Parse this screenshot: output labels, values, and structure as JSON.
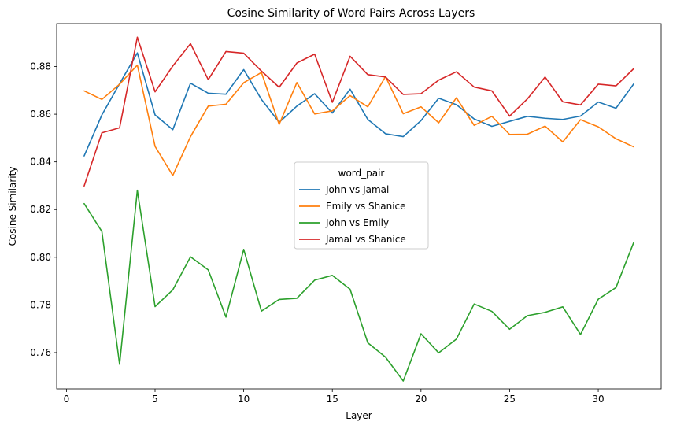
{
  "chart_data": {
    "type": "line",
    "title": "Cosine Similarity of Word Pairs Across Layers",
    "xlabel": "Layer",
    "ylabel": "Cosine Similarity",
    "xlim": [
      -0.55,
      33.55
    ],
    "ylim": [
      0.7448,
      0.898
    ],
    "xticks": [
      0,
      5,
      10,
      15,
      20,
      25,
      30
    ],
    "yticks": [
      0.76,
      0.78,
      0.8,
      0.82,
      0.84,
      0.86,
      0.88
    ],
    "grid": false,
    "legend": {
      "title": "word_pair",
      "placement": "center"
    },
    "x": [
      1,
      2,
      3,
      4,
      5,
      6,
      7,
      8,
      9,
      10,
      11,
      12,
      13,
      14,
      15,
      16,
      17,
      18,
      19,
      20,
      21,
      22,
      23,
      24,
      25,
      26,
      27,
      28,
      29,
      30,
      31,
      32
    ],
    "series": [
      {
        "name": "John vs Jamal",
        "color": "#1f77b4",
        "values": [
          0.8425,
          0.8597,
          0.8728,
          0.8857,
          0.8597,
          0.8535,
          0.873,
          0.8688,
          0.8684,
          0.8787,
          0.8662,
          0.8566,
          0.8634,
          0.8686,
          0.8605,
          0.8705,
          0.8578,
          0.8518,
          0.8506,
          0.8573,
          0.8667,
          0.864,
          0.858,
          0.8549,
          0.857,
          0.8591,
          0.8583,
          0.8578,
          0.8592,
          0.8651,
          0.8625,
          0.8727
        ]
      },
      {
        "name": "Emily vs Shanice",
        "color": "#ff7f0e",
        "values": [
          0.8698,
          0.8662,
          0.8726,
          0.8806,
          0.8465,
          0.8343,
          0.8506,
          0.8634,
          0.8642,
          0.8732,
          0.8775,
          0.8557,
          0.8733,
          0.8601,
          0.8614,
          0.8678,
          0.8631,
          0.8758,
          0.8602,
          0.8631,
          0.8564,
          0.8669,
          0.8553,
          0.8591,
          0.8515,
          0.8516,
          0.855,
          0.8484,
          0.8577,
          0.8547,
          0.8497,
          0.8463
        ]
      },
      {
        "name": "John vs Emily",
        "color": "#2ca02c",
        "values": [
          0.8225,
          0.8108,
          0.7551,
          0.8281,
          0.7793,
          0.7863,
          0.8002,
          0.7947,
          0.7749,
          0.8033,
          0.7774,
          0.7823,
          0.7828,
          0.7904,
          0.7924,
          0.7866,
          0.7641,
          0.7581,
          0.7481,
          0.7679,
          0.7599,
          0.7657,
          0.7804,
          0.7773,
          0.7698,
          0.7755,
          0.7769,
          0.7792,
          0.7676,
          0.7824,
          0.7873,
          0.8062
        ]
      },
      {
        "name": "Jamal vs Shanice",
        "color": "#d62728",
        "values": [
          0.8299,
          0.8522,
          0.8543,
          0.8923,
          0.8694,
          0.8802,
          0.8896,
          0.8745,
          0.8863,
          0.8856,
          0.8781,
          0.8713,
          0.8815,
          0.8852,
          0.865,
          0.8843,
          0.8766,
          0.8756,
          0.8683,
          0.8686,
          0.8743,
          0.8778,
          0.8714,
          0.8698,
          0.8592,
          0.8664,
          0.8756,
          0.8652,
          0.8639,
          0.8726,
          0.8719,
          0.8791
        ]
      }
    ]
  }
}
